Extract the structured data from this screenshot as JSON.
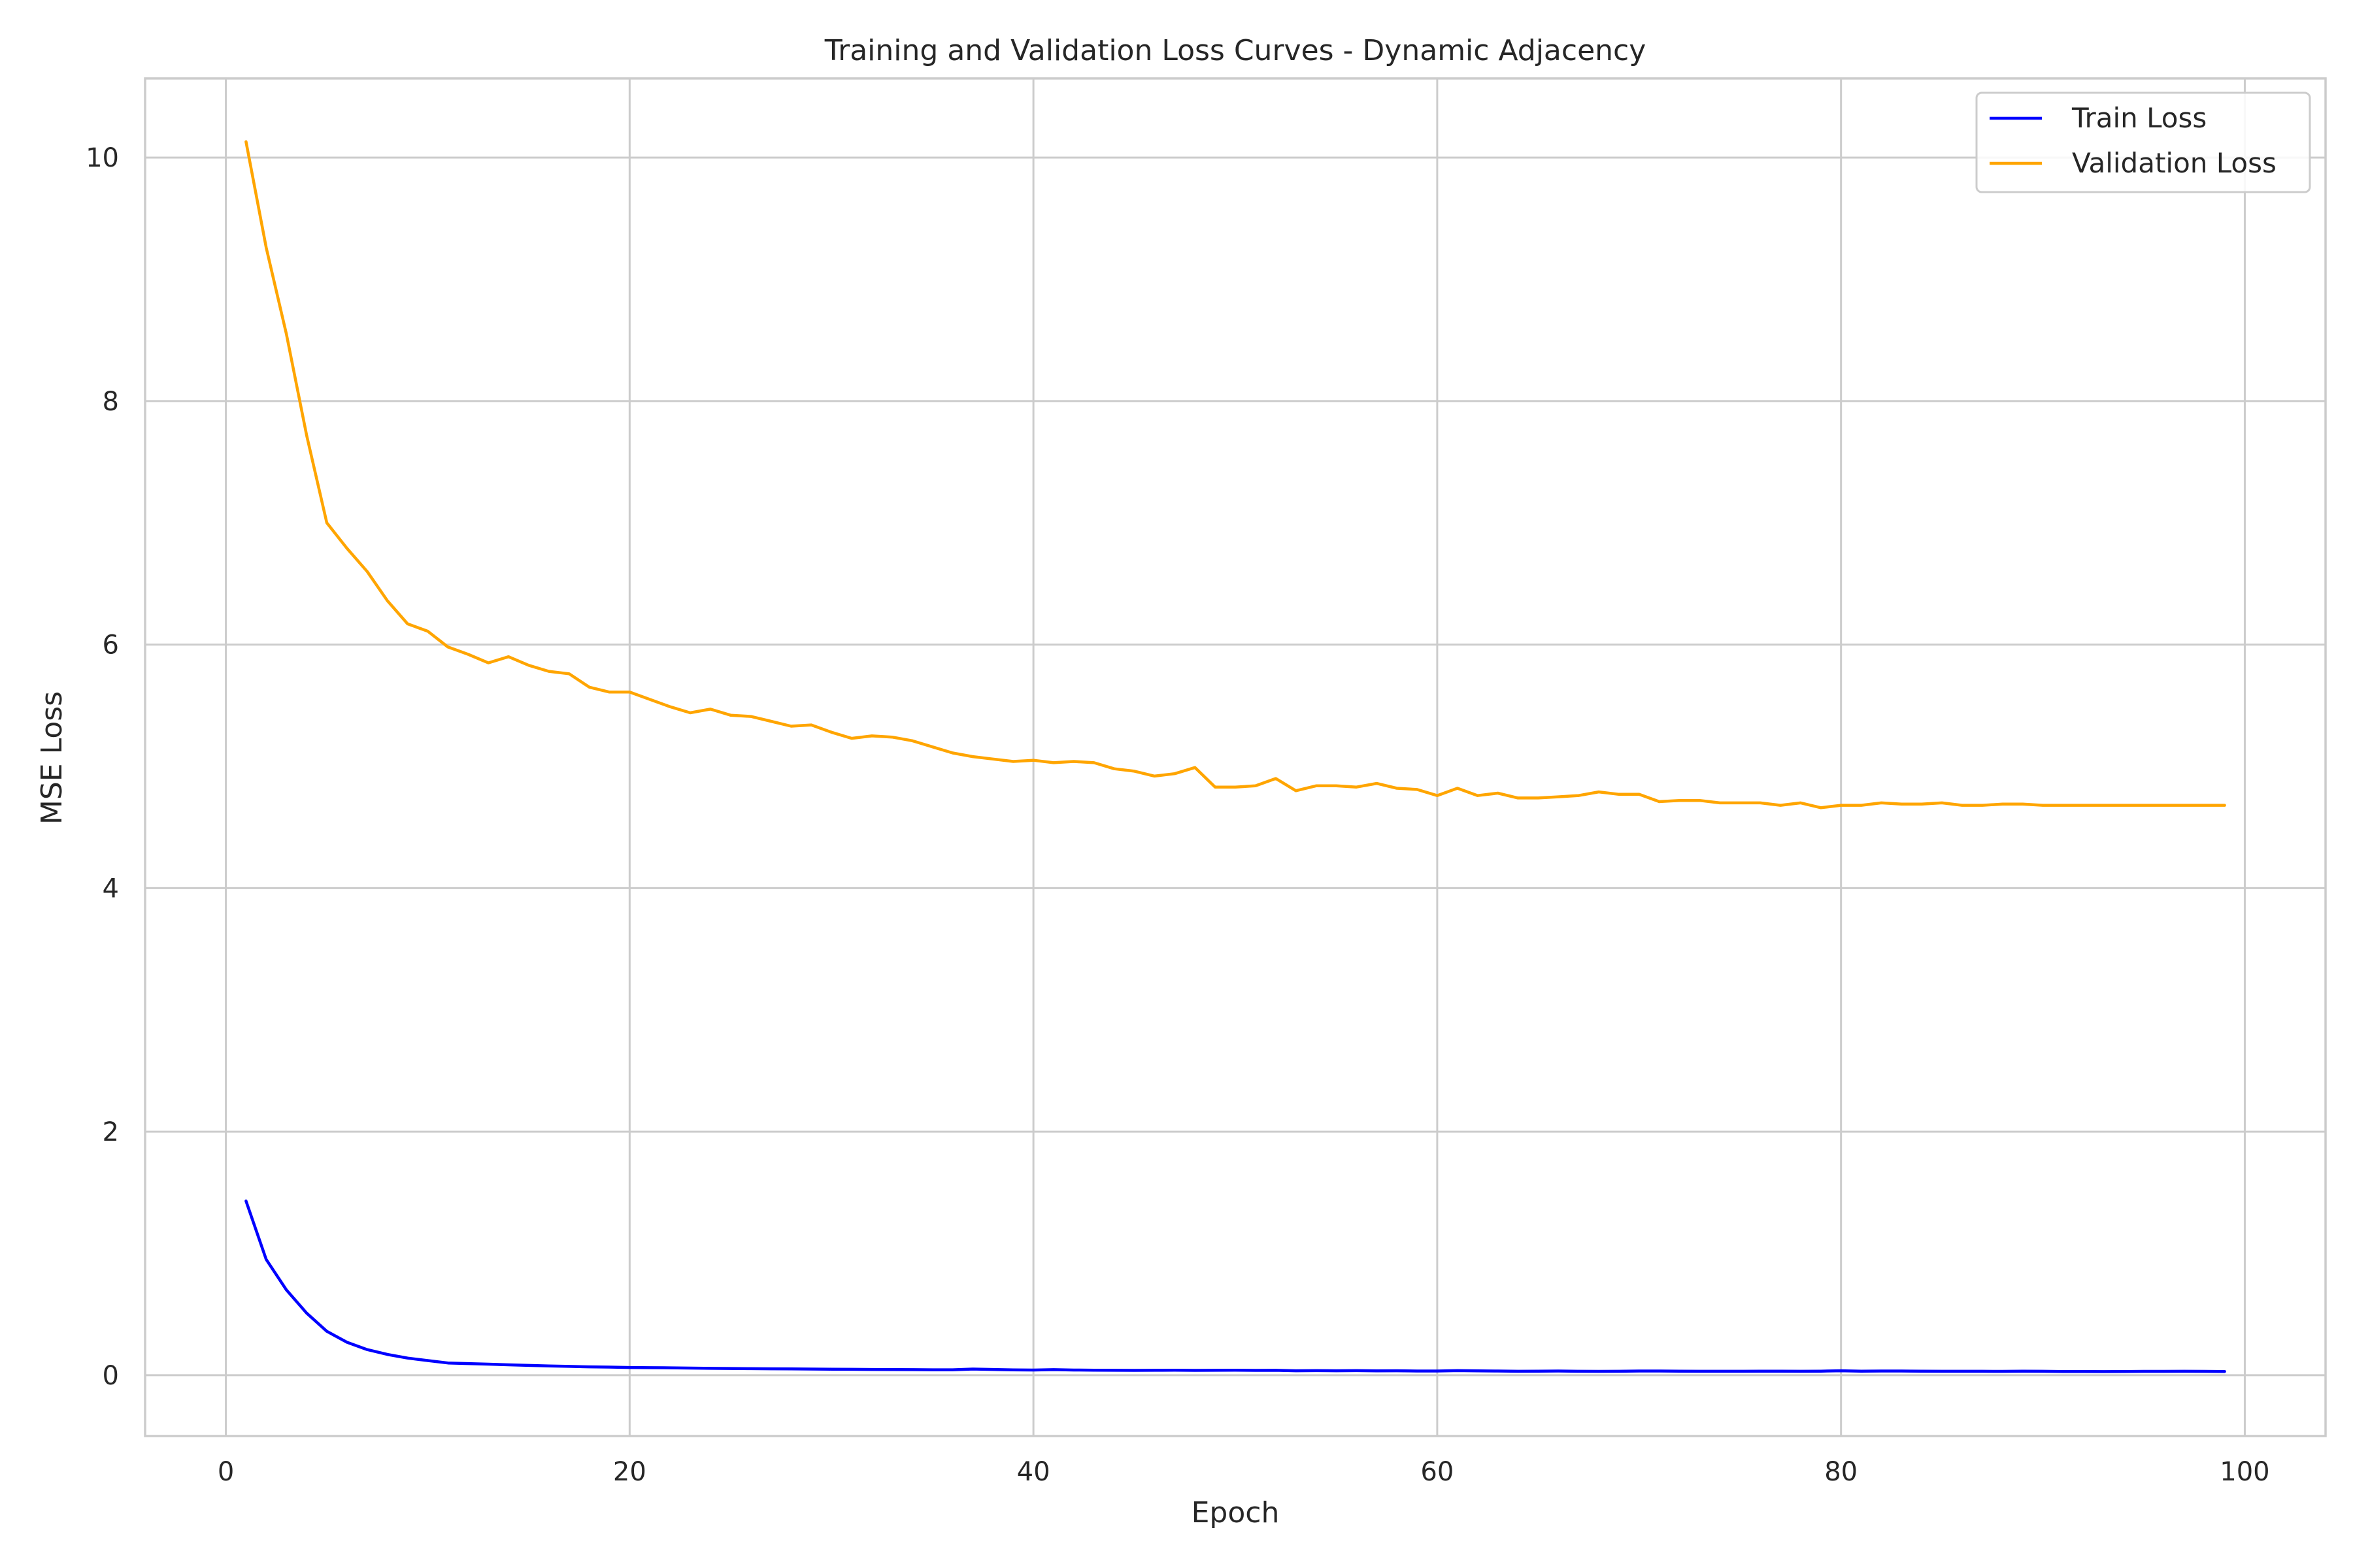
{
  "chart_data": {
    "type": "line",
    "title": "Training and Validation Loss Curves - Dynamic Adjacency",
    "xlabel": "Epoch",
    "ylabel": "MSE Loss",
    "xlim": [
      -4,
      104
    ],
    "ylim": [
      -0.5,
      10.65
    ],
    "xticks": [
      0,
      20,
      40,
      60,
      80,
      100
    ],
    "yticks": [
      0,
      2,
      4,
      6,
      8,
      10
    ],
    "grid": true,
    "legend": "top-right",
    "x": [
      1,
      2,
      3,
      4,
      5,
      6,
      7,
      8,
      9,
      10,
      11,
      12,
      13,
      14,
      15,
      16,
      17,
      18,
      19,
      20,
      21,
      22,
      23,
      24,
      25,
      26,
      27,
      28,
      29,
      30,
      31,
      32,
      33,
      34,
      35,
      36,
      37,
      38,
      39,
      40,
      41,
      42,
      43,
      44,
      45,
      46,
      47,
      48,
      49,
      50,
      51,
      52,
      53,
      54,
      55,
      56,
      57,
      58,
      59,
      60,
      61,
      62,
      63,
      64,
      65,
      66,
      67,
      68,
      69,
      70,
      71,
      72,
      73,
      74,
      75,
      76,
      77,
      78,
      79,
      80,
      81,
      82,
      83,
      84,
      85,
      86,
      87,
      88,
      89,
      90,
      91,
      92,
      93,
      94,
      95,
      96,
      97,
      98,
      99
    ],
    "series": [
      {
        "name": "Train Loss",
        "color": "#0000ff",
        "values": [
          1.43,
          0.95,
          0.7,
          0.51,
          0.36,
          0.27,
          0.21,
          0.17,
          0.14,
          0.12,
          0.1,
          0.095,
          0.09,
          0.085,
          0.08,
          0.075,
          0.072,
          0.068,
          0.066,
          0.063,
          0.061,
          0.06,
          0.058,
          0.056,
          0.055,
          0.053,
          0.052,
          0.051,
          0.05,
          0.049,
          0.048,
          0.047,
          0.046,
          0.045,
          0.044,
          0.044,
          0.05,
          0.047,
          0.043,
          0.042,
          0.045,
          0.042,
          0.041,
          0.04,
          0.039,
          0.04,
          0.041,
          0.039,
          0.04,
          0.041,
          0.039,
          0.04,
          0.036,
          0.037,
          0.036,
          0.037,
          0.035,
          0.036,
          0.034,
          0.034,
          0.037,
          0.035,
          0.034,
          0.032,
          0.033,
          0.034,
          0.032,
          0.031,
          0.032,
          0.034,
          0.034,
          0.033,
          0.032,
          0.032,
          0.032,
          0.033,
          0.033,
          0.032,
          0.033,
          0.036,
          0.033,
          0.034,
          0.034,
          0.033,
          0.032,
          0.032,
          0.032,
          0.031,
          0.033,
          0.032,
          0.03,
          0.03,
          0.029,
          0.03,
          0.031,
          0.031,
          0.032,
          0.031,
          0.03
        ]
      },
      {
        "name": "Validation Loss",
        "color": "#ffa500",
        "values": [
          10.13,
          9.26,
          8.55,
          7.72,
          7.0,
          6.79,
          6.6,
          6.36,
          6.17,
          6.11,
          5.98,
          5.92,
          5.85,
          5.9,
          5.83,
          5.78,
          5.76,
          5.65,
          5.61,
          5.61,
          5.55,
          5.49,
          5.44,
          5.47,
          5.42,
          5.41,
          5.37,
          5.33,
          5.34,
          5.28,
          5.23,
          5.25,
          5.24,
          5.21,
          5.16,
          5.11,
          5.08,
          5.06,
          5.04,
          5.05,
          5.03,
          5.04,
          5.03,
          4.98,
          4.96,
          4.92,
          4.94,
          4.99,
          4.83,
          4.83,
          4.84,
          4.9,
          4.8,
          4.84,
          4.84,
          4.83,
          4.86,
          4.82,
          4.81,
          4.76,
          4.82,
          4.76,
          4.78,
          4.74,
          4.74,
          4.75,
          4.76,
          4.79,
          4.77,
          4.77,
          4.71,
          4.72,
          4.72,
          4.7,
          4.7,
          4.7,
          4.68,
          4.7,
          4.66,
          4.68,
          4.68,
          4.7,
          4.69,
          4.69,
          4.7,
          4.68,
          4.68,
          4.69,
          4.69,
          4.68,
          4.68,
          4.68,
          4.68,
          4.68,
          4.68,
          4.68,
          4.68,
          4.68,
          4.68
        ]
      }
    ]
  }
}
